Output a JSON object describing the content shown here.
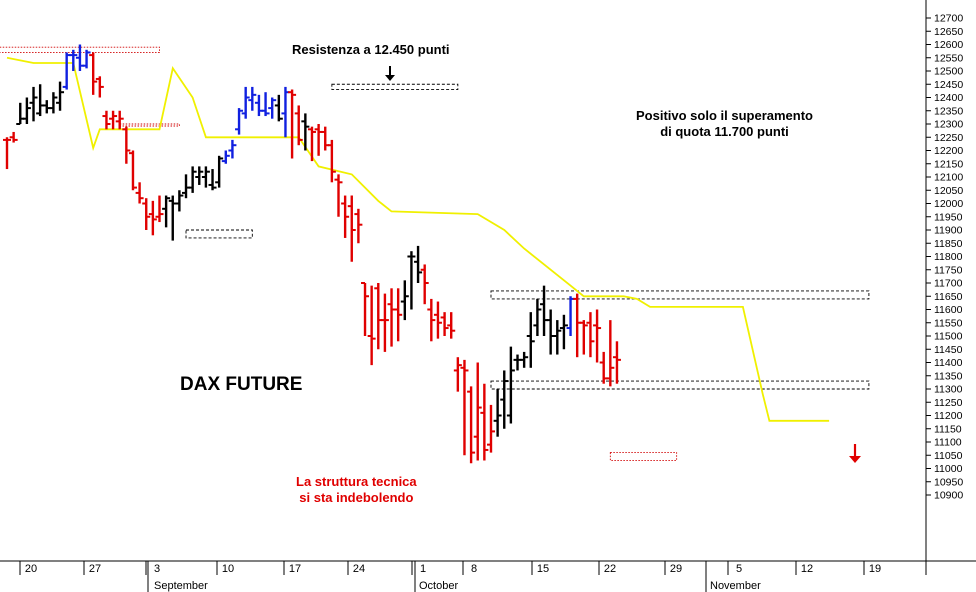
{
  "chart_data": {
    "type": "ohlc",
    "title": "DAX FUTURE",
    "y_axis": {
      "position": "right",
      "range": [
        10850,
        12750
      ],
      "step": 50
    },
    "x_axis": {
      "day_ticks": [
        "20",
        "27",
        "3",
        "10",
        "17",
        "24",
        "1",
        "8",
        "15",
        "22",
        "29",
        "5",
        "12",
        "19"
      ],
      "month_labels": [
        "September",
        "October",
        "November"
      ]
    },
    "colors": {
      "up_trend": "#1020e0",
      "down_trend": "#e00000",
      "neutral": "#000000",
      "stop_line": "#f0f000",
      "arrow": "#e00000"
    },
    "bars": [
      {
        "c": "red",
        "o": 12240,
        "h": 12250,
        "l": 12130,
        "cl": 12240
      },
      {
        "c": "red",
        "o": 12250,
        "h": 12270,
        "l": 12230,
        "cl": 12240
      },
      {
        "c": "black",
        "o": 12300,
        "h": 12380,
        "l": 12300,
        "cl": 12320
      },
      {
        "c": "black",
        "o": 12320,
        "h": 12400,
        "l": 12300,
        "cl": 12360
      },
      {
        "c": "black",
        "o": 12380,
        "h": 12440,
        "l": 12310,
        "cl": 12400
      },
      {
        "c": "black",
        "o": 12340,
        "h": 12450,
        "l": 12330,
        "cl": 12370
      },
      {
        "c": "black",
        "o": 12370,
        "h": 12390,
        "l": 12340,
        "cl": 12360
      },
      {
        "c": "black",
        "o": 12360,
        "h": 12420,
        "l": 12340,
        "cl": 12400
      },
      {
        "c": "black",
        "o": 12380,
        "h": 12460,
        "l": 12350,
        "cl": 12420
      },
      {
        "c": "blue",
        "o": 12440,
        "h": 12570,
        "l": 12430,
        "cl": 12560
      },
      {
        "c": "blue",
        "o": 12560,
        "h": 12580,
        "l": 12500,
        "cl": 12560
      },
      {
        "c": "blue",
        "o": 12550,
        "h": 12600,
        "l": 12500,
        "cl": 12520
      },
      {
        "c": "blue",
        "o": 12520,
        "h": 12580,
        "l": 12510,
        "cl": 12570
      },
      {
        "c": "red",
        "o": 12560,
        "h": 12570,
        "l": 12410,
        "cl": 12460
      },
      {
        "c": "red",
        "o": 12470,
        "h": 12480,
        "l": 12400,
        "cl": 12440
      },
      {
        "c": "red",
        "o": 12330,
        "h": 12350,
        "l": 12280,
        "cl": 12300
      },
      {
        "c": "red",
        "o": 12320,
        "h": 12350,
        "l": 12280,
        "cl": 12330
      },
      {
        "c": "red",
        "o": 12310,
        "h": 12350,
        "l": 12280,
        "cl": 12320
      },
      {
        "c": "red",
        "o": 12280,
        "h": 12290,
        "l": 12150,
        "cl": 12200
      },
      {
        "c": "red",
        "o": 12190,
        "h": 12200,
        "l": 12050,
        "cl": 12060
      },
      {
        "c": "red",
        "o": 12040,
        "h": 12080,
        "l": 12000,
        "cl": 12020
      },
      {
        "c": "red",
        "o": 12000,
        "h": 12020,
        "l": 11900,
        "cl": 11950
      },
      {
        "c": "red",
        "o": 11960,
        "h": 12010,
        "l": 11880,
        "cl": 11940
      },
      {
        "c": "red",
        "o": 11950,
        "h": 12030,
        "l": 11930,
        "cl": 11960
      },
      {
        "c": "black",
        "o": 11980,
        "h": 12030,
        "l": 11910,
        "cl": 12020
      },
      {
        "c": "black",
        "o": 12010,
        "h": 12030,
        "l": 11860,
        "cl": 12000
      },
      {
        "c": "black",
        "o": 12000,
        "h": 12050,
        "l": 11970,
        "cl": 12030
      },
      {
        "c": "black",
        "o": 12040,
        "h": 12110,
        "l": 12020,
        "cl": 12060
      },
      {
        "c": "black",
        "o": 12060,
        "h": 12140,
        "l": 12040,
        "cl": 12120
      },
      {
        "c": "black",
        "o": 12100,
        "h": 12140,
        "l": 12070,
        "cl": 12120
      },
      {
        "c": "black",
        "o": 12100,
        "h": 12140,
        "l": 12060,
        "cl": 12120
      },
      {
        "c": "black",
        "o": 12070,
        "h": 12130,
        "l": 12050,
        "cl": 12060
      },
      {
        "c": "black",
        "o": 12080,
        "h": 12180,
        "l": 12060,
        "cl": 12170
      },
      {
        "c": "blue",
        "o": 12160,
        "h": 12200,
        "l": 12150,
        "cl": 12180
      },
      {
        "c": "blue",
        "o": 12200,
        "h": 12240,
        "l": 12170,
        "cl": 12220
      },
      {
        "c": "blue",
        "o": 12280,
        "h": 12360,
        "l": 12260,
        "cl": 12350
      },
      {
        "c": "blue",
        "o": 12340,
        "h": 12440,
        "l": 12320,
        "cl": 12400
      },
      {
        "c": "blue",
        "o": 12390,
        "h": 12440,
        "l": 12350,
        "cl": 12410
      },
      {
        "c": "blue",
        "o": 12380,
        "h": 12410,
        "l": 12330,
        "cl": 12350
      },
      {
        "c": "blue",
        "o": 12350,
        "h": 12420,
        "l": 12330,
        "cl": 12340
      },
      {
        "c": "blue",
        "o": 12360,
        "h": 12400,
        "l": 12320,
        "cl": 12390
      },
      {
        "c": "black",
        "o": 12370,
        "h": 12410,
        "l": 12310,
        "cl": 12320
      },
      {
        "c": "blue",
        "o": 12340,
        "h": 12440,
        "l": 12250,
        "cl": 12420
      },
      {
        "c": "red",
        "o": 12420,
        "h": 12430,
        "l": 12170,
        "cl": 12410
      },
      {
        "c": "red",
        "o": 12340,
        "h": 12370,
        "l": 12220,
        "cl": 12240
      },
      {
        "c": "black",
        "o": 12310,
        "h": 12340,
        "l": 12200,
        "cl": 12290
      },
      {
        "c": "red",
        "o": 12280,
        "h": 12290,
        "l": 12160,
        "cl": 12270
      },
      {
        "c": "red",
        "o": 12280,
        "h": 12300,
        "l": 12180,
        "cl": 12270
      },
      {
        "c": "red",
        "o": 12270,
        "h": 12290,
        "l": 12200,
        "cl": 12220
      },
      {
        "c": "red",
        "o": 12220,
        "h": 12240,
        "l": 12080,
        "cl": 12120
      },
      {
        "c": "red",
        "o": 12090,
        "h": 12110,
        "l": 11950,
        "cl": 12080
      },
      {
        "c": "red",
        "o": 12000,
        "h": 12030,
        "l": 11870,
        "cl": 11950
      },
      {
        "c": "red",
        "o": 11990,
        "h": 12030,
        "l": 11780,
        "cl": 11900
      },
      {
        "c": "red",
        "o": 11960,
        "h": 11980,
        "l": 11850,
        "cl": 11920
      },
      {
        "c": "red",
        "o": 11700,
        "h": 11700,
        "l": 11500,
        "cl": 11650
      },
      {
        "c": "red",
        "o": 11500,
        "h": 11690,
        "l": 11390,
        "cl": 11490
      },
      {
        "c": "red",
        "o": 11680,
        "h": 11700,
        "l": 11450,
        "cl": 11560
      },
      {
        "c": "red",
        "o": 11560,
        "h": 11660,
        "l": 11440,
        "cl": 11560
      },
      {
        "c": "red",
        "o": 11620,
        "h": 11680,
        "l": 11460,
        "cl": 11600
      },
      {
        "c": "red",
        "o": 11600,
        "h": 11680,
        "l": 11480,
        "cl": 11580
      },
      {
        "c": "black",
        "o": 11630,
        "h": 11710,
        "l": 11560,
        "cl": 11650
      },
      {
        "c": "black",
        "o": 11800,
        "h": 11820,
        "l": 11600,
        "cl": 11800
      },
      {
        "c": "black",
        "o": 11780,
        "h": 11840,
        "l": 11700,
        "cl": 11740
      },
      {
        "c": "red",
        "o": 11750,
        "h": 11770,
        "l": 11620,
        "cl": 11700
      },
      {
        "c": "red",
        "o": 11600,
        "h": 11640,
        "l": 11480,
        "cl": 11560
      },
      {
        "c": "red",
        "o": 11580,
        "h": 11630,
        "l": 11490,
        "cl": 11550
      },
      {
        "c": "red",
        "o": 11570,
        "h": 11590,
        "l": 11500,
        "cl": 11530
      },
      {
        "c": "red",
        "o": 11540,
        "h": 11590,
        "l": 11490,
        "cl": 11520
      },
      {
        "c": "red",
        "o": 11370,
        "h": 11420,
        "l": 11290,
        "cl": 11390
      },
      {
        "c": "red",
        "o": 11380,
        "h": 11410,
        "l": 11050,
        "cl": 11370
      },
      {
        "c": "red",
        "o": 11290,
        "h": 11310,
        "l": 11020,
        "cl": 11060
      },
      {
        "c": "red",
        "o": 11120,
        "h": 11400,
        "l": 11030,
        "cl": 11230
      },
      {
        "c": "red",
        "o": 11210,
        "h": 11320,
        "l": 11030,
        "cl": 11070
      },
      {
        "c": "red",
        "o": 11090,
        "h": 11240,
        "l": 11060,
        "cl": 11140
      },
      {
        "c": "black",
        "o": 11180,
        "h": 11300,
        "l": 11120,
        "cl": 11200
      },
      {
        "c": "black",
        "o": 11260,
        "h": 11370,
        "l": 11150,
        "cl": 11330
      },
      {
        "c": "black",
        "o": 11200,
        "h": 11460,
        "l": 11170,
        "cl": 11370
      },
      {
        "c": "black",
        "o": 11410,
        "h": 11430,
        "l": 11370,
        "cl": 11410
      },
      {
        "c": "black",
        "o": 11410,
        "h": 11440,
        "l": 11380,
        "cl": 11420
      },
      {
        "c": "black",
        "o": 11500,
        "h": 11590,
        "l": 11380,
        "cl": 11480
      },
      {
        "c": "black",
        "o": 11540,
        "h": 11640,
        "l": 11500,
        "cl": 11600
      },
      {
        "c": "black",
        "o": 11620,
        "h": 11690,
        "l": 11500,
        "cl": 11560
      },
      {
        "c": "black",
        "o": 11560,
        "h": 11600,
        "l": 11430,
        "cl": 11500
      },
      {
        "c": "black",
        "o": 11500,
        "h": 11560,
        "l": 11430,
        "cl": 11520
      },
      {
        "c": "black",
        "o": 11530,
        "h": 11580,
        "l": 11450,
        "cl": 11540
      },
      {
        "c": "blue",
        "o": 11530,
        "h": 11650,
        "l": 11500,
        "cl": 11640
      },
      {
        "c": "red",
        "o": 11640,
        "h": 11660,
        "l": 11420,
        "cl": 11550
      },
      {
        "c": "red",
        "o": 11550,
        "h": 11560,
        "l": 11430,
        "cl": 11540
      },
      {
        "c": "red",
        "o": 11550,
        "h": 11590,
        "l": 11420,
        "cl": 11480
      },
      {
        "c": "red",
        "o": 11540,
        "h": 11600,
        "l": 11400,
        "cl": 11530
      },
      {
        "c": "red",
        "o": 11400,
        "h": 11440,
        "l": 11320,
        "cl": 11340
      },
      {
        "c": "red",
        "o": 11340,
        "h": 11560,
        "l": 11310,
        "cl": 11380
      },
      {
        "c": "red",
        "o": 11420,
        "h": 11480,
        "l": 11320,
        "cl": 11410
      }
    ],
    "stop_line": [
      [
        0,
        12550
      ],
      [
        4,
        12530
      ],
      [
        10,
        12530
      ],
      [
        13,
        12210
      ],
      [
        14,
        12280
      ],
      [
        23,
        12280
      ],
      [
        25,
        12510
      ],
      [
        28,
        12400
      ],
      [
        30,
        12250
      ],
      [
        44,
        12250
      ],
      [
        47,
        12140
      ],
      [
        52,
        12110
      ],
      [
        56,
        12010
      ],
      [
        58,
        11970
      ],
      [
        71,
        11960
      ],
      [
        75,
        11900
      ],
      [
        78,
        11830
      ],
      [
        85,
        11690
      ],
      [
        87,
        11650
      ],
      [
        93,
        11650
      ],
      [
        95,
        11640
      ],
      [
        97,
        11610
      ],
      [
        111,
        11610
      ],
      [
        114,
        11280
      ],
      [
        115,
        11180
      ],
      [
        117,
        11180
      ],
      [
        121,
        11180
      ],
      [
        124,
        11180
      ]
    ],
    "zones": [
      {
        "x0": -2,
        "x1": 23,
        "lo": 12570,
        "hi": 12590,
        "style": "red-dotted"
      },
      {
        "x0": 17,
        "x1": 26,
        "lo": 12300,
        "hi": 12300,
        "style": "red-dotted"
      },
      {
        "x0": 27,
        "x1": 37,
        "lo": 11870,
        "hi": 11900,
        "style": "black-dashed"
      },
      {
        "x0": 49,
        "x1": 68,
        "lo": 12430,
        "hi": 12450,
        "style": "black-dashed"
      },
      {
        "x0": 73,
        "x1": 130,
        "lo": 11640,
        "hi": 11670,
        "style": "black-dashed"
      },
      {
        "x0": 73,
        "x1": 130,
        "lo": 11300,
        "hi": 11330,
        "style": "black-dashed"
      },
      {
        "x0": 91,
        "x1": 101,
        "lo": 11030,
        "hi": 11060,
        "style": "red-dotted"
      }
    ],
    "annotations": {
      "title": "DAX FUTURE",
      "resistance": "Resistenza a 12.450 punti",
      "positive_line1": "Positivo solo il superamento",
      "positive_line2": "di quota 11.700 punti",
      "structure_line1": "La struttura tecnica",
      "structure_line2": "si sta indebolendo"
    }
  }
}
